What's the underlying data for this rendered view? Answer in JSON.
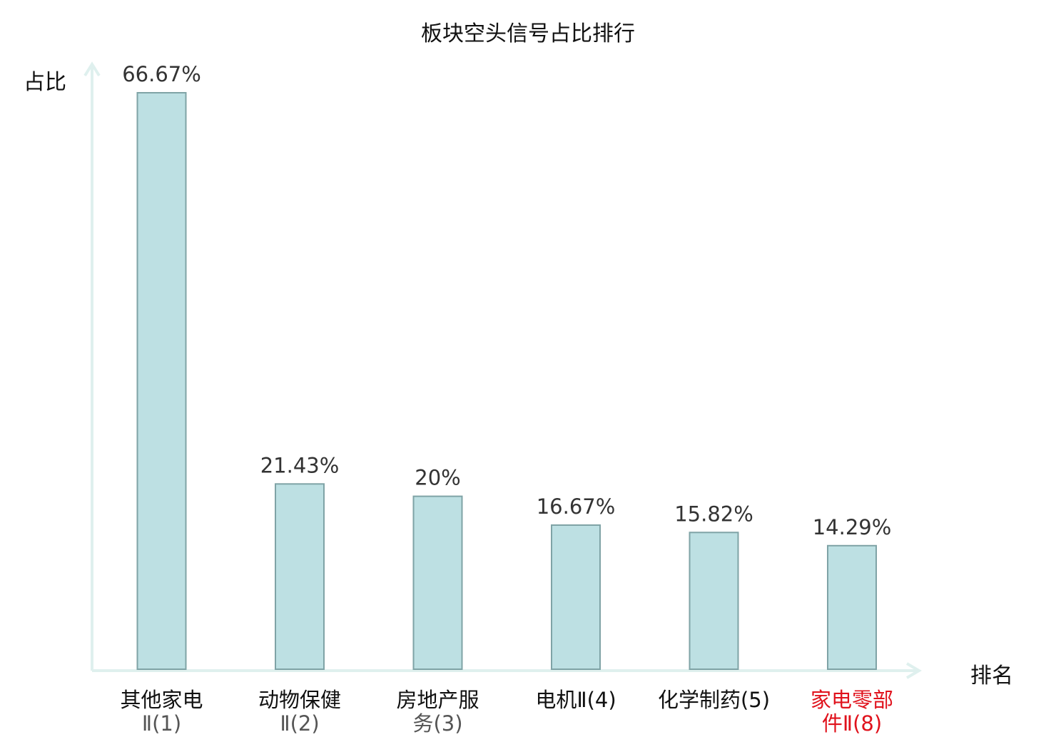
{
  "chart_data": {
    "type": "bar",
    "title": "板块空头信号占比排行",
    "ylabel": "占比",
    "xlabel": "排名",
    "ylim": [
      0,
      70
    ],
    "grid": false,
    "categories": [
      {
        "name": "其他家电",
        "suffix": "Ⅱ(1)",
        "highlight": false
      },
      {
        "name": "动物保健",
        "suffix": "Ⅱ(2)",
        "highlight": false
      },
      {
        "name": "房地产服",
        "suffix": "务(3)",
        "highlight": false
      },
      {
        "name": "电机Ⅱ(4)",
        "suffix": "",
        "highlight": false
      },
      {
        "name": "化学制药(5)",
        "suffix": "",
        "highlight": false
      },
      {
        "name": "家电零部",
        "suffix": "件Ⅱ(8)",
        "highlight": true
      }
    ],
    "values": [
      66.67,
      21.43,
      20,
      16.67,
      15.82,
      14.29
    ],
    "value_labels": [
      "66.67%",
      "21.43%",
      "20%",
      "16.67%",
      "15.82%",
      "14.29%"
    ],
    "colors": {
      "bar_fill": "#bde0e3",
      "bar_stroke": "#7fa3a6",
      "axis": "#dff0ee",
      "highlight_text": "#e0121c"
    }
  }
}
